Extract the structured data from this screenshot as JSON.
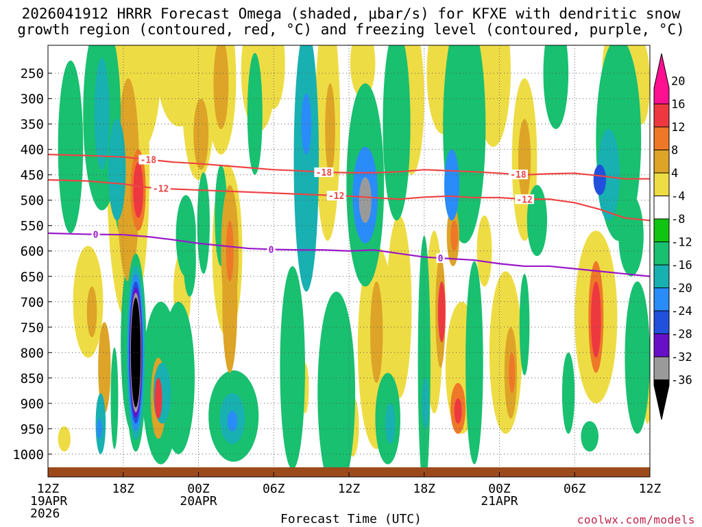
{
  "title": {
    "line1": "2026041912 HRRR Forecast Omega (shaded, μbar/s) for KFXE with dendritic snow",
    "line2": "growth region (contoured, red, °C) and freezing level (contoured, purple, °C)"
  },
  "credit": "coolwx.com/models",
  "chart_data": {
    "type": "time-height cross-section",
    "xlabel": "Forecast Time (UTC)",
    "ylabel": "",
    "xlim": [
      0,
      48
    ],
    "ylim": [
      1030,
      195
    ],
    "x_ticks": [
      {
        "hour": 0,
        "lines": [
          "12Z",
          "19APR",
          "2026"
        ]
      },
      {
        "hour": 6,
        "lines": [
          "18Z"
        ]
      },
      {
        "hour": 12,
        "lines": [
          "00Z",
          "20APR"
        ]
      },
      {
        "hour": 18,
        "lines": [
          "06Z"
        ]
      },
      {
        "hour": 24,
        "lines": [
          "12Z"
        ]
      },
      {
        "hour": 30,
        "lines": [
          "18Z"
        ]
      },
      {
        "hour": 36,
        "lines": [
          "00Z",
          "21APR"
        ]
      },
      {
        "hour": 42,
        "lines": [
          "06Z"
        ]
      },
      {
        "hour": 48,
        "lines": [
          "12Z"
        ]
      }
    ],
    "y_ticks": [
      250,
      300,
      350,
      400,
      450,
      500,
      550,
      600,
      650,
      700,
      750,
      800,
      850,
      900,
      950,
      1000
    ],
    "colorbar": {
      "labels": [
        "20",
        "16",
        "12",
        "8",
        "4",
        "-4",
        "-8",
        "-12",
        "-16",
        "-20",
        "-24",
        "-28",
        "-32",
        "-36"
      ],
      "colors": [
        "#ff1090",
        "#ee3840",
        "#ee7828",
        "#dda428",
        "#eedc44",
        "#ffffff",
        "#12c412",
        "#18c070",
        "#18b0b0",
        "#2a8cf8",
        "#2050dc",
        "#6810c8",
        "#9a9a9a",
        "#000000"
      ]
    },
    "omega_blobs": [
      {
        "x": 1.8,
        "p": 395,
        "rx": 1.0,
        "rp": 170,
        "v": -10
      },
      {
        "x": 4.3,
        "p": 330,
        "rx": 1.5,
        "rp": 190,
        "v": -10
      },
      {
        "x": 4.3,
        "p": 330,
        "rx": 0.6,
        "rp": 110,
        "v": -13
      },
      {
        "x": 6.2,
        "p": 470,
        "rx": 1.0,
        "rp": 110,
        "v": -8
      },
      {
        "x": 5.5,
        "p": 440,
        "rx": 0.7,
        "rp": 100,
        "v": -13
      },
      {
        "x": 11.3,
        "p": 620,
        "rx": 0.5,
        "rp": 70,
        "v": -8
      },
      {
        "x": 12.4,
        "p": 545,
        "rx": 0.5,
        "rp": 100,
        "v": -10
      },
      {
        "x": 13.8,
        "p": 530,
        "rx": 0.5,
        "rp": 100,
        "v": -10
      },
      {
        "x": 16.5,
        "p": 330,
        "rx": 0.6,
        "rp": 120,
        "v": -8
      },
      {
        "x": 20.6,
        "p": 420,
        "rx": 1.0,
        "rp": 260,
        "v": -12
      },
      {
        "x": 20.6,
        "p": 350,
        "rx": 0.4,
        "rp": 60,
        "v": -17
      },
      {
        "x": 25.3,
        "p": 470,
        "rx": 1.5,
        "rp": 200,
        "v": -10
      },
      {
        "x": 25.3,
        "p": 490,
        "rx": 1.0,
        "rp": 95,
        "v": -16
      },
      {
        "x": 25.3,
        "p": 500,
        "rx": 0.5,
        "rp": 45,
        "v": -28
      },
      {
        "x": 27.8,
        "p": 350,
        "rx": 1.1,
        "rp": 190,
        "v": -9
      },
      {
        "x": 33.2,
        "p": 355,
        "rx": 1.7,
        "rp": 230,
        "v": -9
      },
      {
        "x": 32.2,
        "p": 470,
        "rx": 0.6,
        "rp": 70,
        "v": -16
      },
      {
        "x": 39.0,
        "p": 540,
        "rx": 0.8,
        "rp": 70,
        "v": -8
      },
      {
        "x": 40.5,
        "p": 250,
        "rx": 1.0,
        "rp": 110,
        "v": -9
      },
      {
        "x": 45.5,
        "p": 380,
        "rx": 1.8,
        "rp": 200,
        "v": -10
      },
      {
        "x": 44.7,
        "p": 450,
        "rx": 0.9,
        "rp": 90,
        "v": -14
      },
      {
        "x": 44.0,
        "p": 460,
        "rx": 0.5,
        "rp": 30,
        "v": -21
      },
      {
        "x": 46.5,
        "p": 570,
        "rx": 1.0,
        "rp": 80,
        "v": -9
      },
      {
        "x": 4.2,
        "p": 940,
        "rx": 0.4,
        "rp": 60,
        "v": -14
      },
      {
        "x": 4.1,
        "p": 950,
        "rx": 0.2,
        "rp": 20,
        "v": -19
      },
      {
        "x": 9.0,
        "p": 860,
        "rx": 1.5,
        "rp": 160,
        "v": -9
      },
      {
        "x": 9.1,
        "p": 880,
        "rx": 0.7,
        "rp": 60,
        "v": -14
      },
      {
        "x": 14.8,
        "p": 925,
        "rx": 2.0,
        "rp": 90,
        "v": -9
      },
      {
        "x": 14.7,
        "p": 930,
        "rx": 1.0,
        "rp": 50,
        "v": -14
      },
      {
        "x": 14.7,
        "p": 935,
        "rx": 0.4,
        "rp": 20,
        "v": -18
      },
      {
        "x": 19.5,
        "p": 830,
        "rx": 1.0,
        "rp": 200,
        "v": -8
      },
      {
        "x": 23.0,
        "p": 880,
        "rx": 1.5,
        "rp": 200,
        "v": -9
      },
      {
        "x": 27.1,
        "p": 930,
        "rx": 1.0,
        "rp": 90,
        "v": -10
      },
      {
        "x": 27.3,
        "p": 940,
        "rx": 0.4,
        "rp": 40,
        "v": -14
      },
      {
        "x": 30.0,
        "p": 820,
        "rx": 0.5,
        "rp": 250,
        "v": -10
      },
      {
        "x": 30.1,
        "p": 900,
        "rx": 0.3,
        "rp": 50,
        "v": -14
      },
      {
        "x": 34.0,
        "p": 820,
        "rx": 0.7,
        "rp": 200,
        "v": -9
      },
      {
        "x": 38.0,
        "p": 745,
        "rx": 0.4,
        "rp": 100,
        "v": -8
      },
      {
        "x": 41.5,
        "p": 880,
        "rx": 0.5,
        "rp": 80,
        "v": -9
      },
      {
        "x": 43.2,
        "p": 965,
        "rx": 0.7,
        "rp": 30,
        "v": -8
      },
      {
        "x": 47.0,
        "p": 810,
        "rx": 1.0,
        "rp": 150,
        "v": -9
      },
      {
        "x": 5.3,
        "p": 890,
        "rx": 0.3,
        "rp": 100,
        "v": -8
      },
      {
        "x": 10.4,
        "p": 850,
        "rx": 1.3,
        "rp": 150,
        "v": -8
      },
      {
        "x": 11.0,
        "p": 570,
        "rx": 0.8,
        "rp": 80,
        "v": -9
      },
      {
        "x": 6.8,
        "p": 780,
        "rx": 1.0,
        "rp": 180,
        "v": -9
      },
      {
        "x": 7.2,
        "p": 245,
        "rx": 1.8,
        "rp": 160,
        "v": 6
      },
      {
        "x": 6.4,
        "p": 440,
        "rx": 1.7,
        "rp": 300,
        "v": 6
      },
      {
        "x": 6.4,
        "p": 460,
        "rx": 0.9,
        "rp": 200,
        "v": 9
      },
      {
        "x": 7.2,
        "p": 480,
        "rx": 0.6,
        "rp": 80,
        "v": 14
      },
      {
        "x": 7.2,
        "p": 480,
        "rx": 0.4,
        "rp": 55,
        "v": 19
      },
      {
        "x": 10.5,
        "p": 245,
        "rx": 1.8,
        "rp": 110,
        "v": 6
      },
      {
        "x": 12.0,
        "p": 300,
        "rx": 1.3,
        "rp": 160,
        "v": 6
      },
      {
        "x": 13.8,
        "p": 260,
        "rx": 1.2,
        "rp": 150,
        "v": 7
      },
      {
        "x": 13.8,
        "p": 270,
        "rx": 0.6,
        "rp": 90,
        "v": 10
      },
      {
        "x": 12.2,
        "p": 370,
        "rx": 0.6,
        "rp": 70,
        "v": 10
      },
      {
        "x": 14.3,
        "p": 600,
        "rx": 1.2,
        "rp": 170,
        "v": 7
      },
      {
        "x": 14.5,
        "p": 600,
        "rx": 0.7,
        "rp": 130,
        "v": 10
      },
      {
        "x": 14.5,
        "p": 600,
        "rx": 0.3,
        "rp": 60,
        "v": 14
      },
      {
        "x": 16.8,
        "p": 245,
        "rx": 1.4,
        "rp": 120,
        "v": 6
      },
      {
        "x": 18.0,
        "p": 230,
        "rx": 0.9,
        "rp": 90,
        "v": 7
      },
      {
        "x": 22.3,
        "p": 350,
        "rx": 1.0,
        "rp": 230,
        "v": 6
      },
      {
        "x": 22.5,
        "p": 360,
        "rx": 0.4,
        "rp": 90,
        "v": 10
      },
      {
        "x": 25.1,
        "p": 230,
        "rx": 1.0,
        "rp": 70,
        "v": 6
      },
      {
        "x": 29.0,
        "p": 300,
        "rx": 1.0,
        "rp": 150,
        "v": 6
      },
      {
        "x": 31.5,
        "p": 250,
        "rx": 1.3,
        "rp": 120,
        "v": 6
      },
      {
        "x": 35.5,
        "p": 245,
        "rx": 1.4,
        "rp": 150,
        "v": 6
      },
      {
        "x": 38.0,
        "p": 420,
        "rx": 1.0,
        "rp": 160,
        "v": 6
      },
      {
        "x": 38.0,
        "p": 420,
        "rx": 0.5,
        "rp": 80,
        "v": 9
      },
      {
        "x": 45.8,
        "p": 240,
        "rx": 1.6,
        "rp": 100,
        "v": 6
      },
      {
        "x": 47.4,
        "p": 270,
        "rx": 0.6,
        "rp": 80,
        "v": 7
      },
      {
        "x": 3.2,
        "p": 700,
        "rx": 1.2,
        "rp": 110,
        "v": 6
      },
      {
        "x": 3.5,
        "p": 720,
        "rx": 0.4,
        "rp": 50,
        "v": 10
      },
      {
        "x": 4.5,
        "p": 830,
        "rx": 0.5,
        "rp": 90,
        "v": 8
      },
      {
        "x": 8.8,
        "p": 890,
        "rx": 1.0,
        "rp": 120,
        "v": 6
      },
      {
        "x": 8.8,
        "p": 890,
        "rx": 0.6,
        "rp": 80,
        "v": 11
      },
      {
        "x": 8.8,
        "p": 890,
        "rx": 0.3,
        "rp": 40,
        "v": 17
      },
      {
        "x": 10.7,
        "p": 680,
        "rx": 0.7,
        "rp": 80,
        "v": 7
      },
      {
        "x": 14.5,
        "p": 700,
        "rx": 0.6,
        "rp": 140,
        "v": 9
      },
      {
        "x": 20.5,
        "p": 870,
        "rx": 0.3,
        "rp": 50,
        "v": 6
      },
      {
        "x": 24.3,
        "p": 945,
        "rx": 0.5,
        "rp": 60,
        "v": 6
      },
      {
        "x": 26.2,
        "p": 790,
        "rx": 1.5,
        "rp": 200,
        "v": 6
      },
      {
        "x": 26.2,
        "p": 760,
        "rx": 0.5,
        "rp": 100,
        "v": 9
      },
      {
        "x": 28.0,
        "p": 710,
        "rx": 1.0,
        "rp": 180,
        "v": 6
      },
      {
        "x": 30.8,
        "p": 740,
        "rx": 0.7,
        "rp": 180,
        "v": 7
      },
      {
        "x": 31.3,
        "p": 720,
        "rx": 0.4,
        "rp": 110,
        "v": 10
      },
      {
        "x": 31.4,
        "p": 720,
        "rx": 0.3,
        "rp": 60,
        "v": 17
      },
      {
        "x": 32.3,
        "p": 570,
        "rx": 0.5,
        "rp": 60,
        "v": 10
      },
      {
        "x": 32.4,
        "p": 570,
        "rx": 0.3,
        "rp": 30,
        "v": 14
      },
      {
        "x": 33.0,
        "p": 830,
        "rx": 1.3,
        "rp": 130,
        "v": 6
      },
      {
        "x": 32.7,
        "p": 910,
        "rx": 0.6,
        "rp": 50,
        "v": 12
      },
      {
        "x": 32.7,
        "p": 915,
        "rx": 0.3,
        "rp": 25,
        "v": 17
      },
      {
        "x": 36.5,
        "p": 800,
        "rx": 1.3,
        "rp": 160,
        "v": 6
      },
      {
        "x": 36.9,
        "p": 840,
        "rx": 0.5,
        "rp": 90,
        "v": 10
      },
      {
        "x": 37.0,
        "p": 840,
        "rx": 0.25,
        "rp": 40,
        "v": 15
      },
      {
        "x": 43.7,
        "p": 730,
        "rx": 1.7,
        "rp": 170,
        "v": 7
      },
      {
        "x": 43.7,
        "p": 730,
        "rx": 0.6,
        "rp": 110,
        "v": 12
      },
      {
        "x": 43.7,
        "p": 735,
        "rx": 0.4,
        "rp": 75,
        "v": 18
      },
      {
        "x": 34.8,
        "p": 600,
        "rx": 0.6,
        "rp": 70,
        "v": 6
      },
      {
        "x": 1.3,
        "p": 970,
        "rx": 0.5,
        "rp": 25,
        "v": 6
      },
      {
        "x": 9.8,
        "p": 960,
        "rx": 1.0,
        "rp": 30,
        "v": 6
      },
      {
        "x": 47.8,
        "p": 890,
        "rx": 0.3,
        "rp": 50,
        "v": 6
      }
    ],
    "core_updraft": [
      {
        "x": 7.0,
        "p": 800,
        "rx": 0.85,
        "rp": 195,
        "v": -10
      },
      {
        "x": 7.0,
        "p": 800,
        "rx": 0.72,
        "rp": 172,
        "v": -14
      },
      {
        "x": 7.0,
        "p": 800,
        "rx": 0.62,
        "rp": 155,
        "v": -18
      },
      {
        "x": 7.0,
        "p": 800,
        "rx": 0.55,
        "rp": 140,
        "v": -22
      },
      {
        "x": 7.0,
        "p": 800,
        "rx": 0.49,
        "rp": 128,
        "v": -26
      },
      {
        "x": 7.0,
        "p": 800,
        "rx": 0.44,
        "rp": 118,
        "v": -30
      },
      {
        "x": 7.0,
        "p": 800,
        "rx": 0.39,
        "rp": 108,
        "v": -34
      },
      {
        "x": 7.0,
        "p": 800,
        "rx": 0.33,
        "rp": 96,
        "v": -40
      }
    ],
    "contours": [
      {
        "name": "-18",
        "color": "#ee4444",
        "hours": [
          0,
          3,
          6,
          8,
          10,
          12,
          14,
          16,
          18,
          20,
          22,
          24,
          26,
          28,
          30,
          32,
          34,
          36,
          38,
          40,
          42,
          44,
          46,
          48
        ],
        "p": [
          410,
          412,
          415,
          420,
          425,
          428,
          432,
          436,
          440,
          442,
          445,
          446,
          446,
          444,
          440,
          442,
          444,
          447,
          450,
          448,
          447,
          452,
          458,
          458
        ],
        "labels": [
          {
            "hour": 8,
            "text": "-18"
          },
          {
            "hour": 22,
            "text": "-18"
          },
          {
            "hour": 37.5,
            "text": "-18"
          }
        ]
      },
      {
        "name": "-12",
        "color": "#ee4444",
        "hours": [
          0,
          3,
          6,
          8,
          10,
          12,
          14,
          16,
          18,
          20,
          22,
          24,
          26,
          28,
          30,
          32,
          34,
          36,
          38,
          40,
          42,
          44,
          46,
          48
        ],
        "p": [
          460,
          462,
          468,
          475,
          478,
          480,
          482,
          484,
          486,
          488,
          490,
          492,
          495,
          498,
          494,
          492,
          495,
          495,
          498,
          498,
          505,
          518,
          535,
          540
        ],
        "labels": [
          {
            "hour": 9,
            "text": "-12"
          },
          {
            "hour": 23,
            "text": "-12"
          },
          {
            "hour": 38,
            "text": "-12"
          }
        ]
      },
      {
        "name": "0",
        "color": "#9a16c8",
        "hours": [
          0,
          3,
          6,
          8,
          10,
          12,
          14,
          16,
          18,
          20,
          22,
          24,
          26,
          28,
          30,
          32,
          34,
          36,
          38,
          40,
          42,
          44,
          46,
          48
        ],
        "p": [
          565,
          567,
          568,
          572,
          578,
          585,
          590,
          595,
          597,
          598,
          598,
          600,
          598,
          605,
          612,
          615,
          618,
          625,
          630,
          630,
          635,
          640,
          645,
          650
        ],
        "labels": [
          {
            "hour": 3.8,
            "text": "0"
          },
          {
            "hour": 17.8,
            "text": "0"
          },
          {
            "hour": 31.3,
            "text": "0"
          }
        ]
      }
    ]
  }
}
